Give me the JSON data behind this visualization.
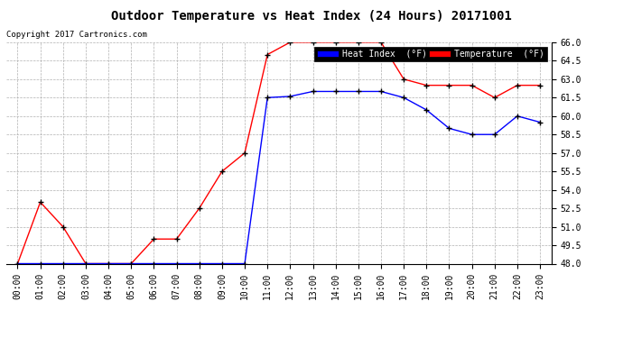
{
  "title": "Outdoor Temperature vs Heat Index (24 Hours) 20171001",
  "copyright": "Copyright 2017 Cartronics.com",
  "hours": [
    "00:00",
    "01:00",
    "02:00",
    "03:00",
    "04:00",
    "05:00",
    "06:00",
    "07:00",
    "08:00",
    "09:00",
    "10:00",
    "11:00",
    "12:00",
    "13:00",
    "14:00",
    "15:00",
    "16:00",
    "17:00",
    "18:00",
    "19:00",
    "20:00",
    "21:00",
    "22:00",
    "23:00"
  ],
  "temperature": [
    48.0,
    53.0,
    51.0,
    48.0,
    48.0,
    48.0,
    50.0,
    50.0,
    52.5,
    55.5,
    57.0,
    65.0,
    66.0,
    66.0,
    66.0,
    66.0,
    66.0,
    63.0,
    62.5,
    62.5,
    62.5,
    61.5,
    62.5,
    62.5
  ],
  "heat_index": [
    48.0,
    48.0,
    48.0,
    48.0,
    48.0,
    48.0,
    48.0,
    48.0,
    48.0,
    48.0,
    48.0,
    61.5,
    61.6,
    62.0,
    62.0,
    62.0,
    62.0,
    61.5,
    60.5,
    59.0,
    58.5,
    58.5,
    60.0,
    59.5
  ],
  "ylim": [
    48.0,
    66.0
  ],
  "yticks": [
    48.0,
    49.5,
    51.0,
    52.5,
    54.0,
    55.5,
    57.0,
    58.5,
    60.0,
    61.5,
    63.0,
    64.5,
    66.0
  ],
  "temp_color": "#ff0000",
  "heat_index_color": "#0000ff",
  "bg_color": "#ffffff",
  "grid_color": "#b0b0b0",
  "legend_heat_bg": "#0000ff",
  "legend_temp_bg": "#ff0000"
}
